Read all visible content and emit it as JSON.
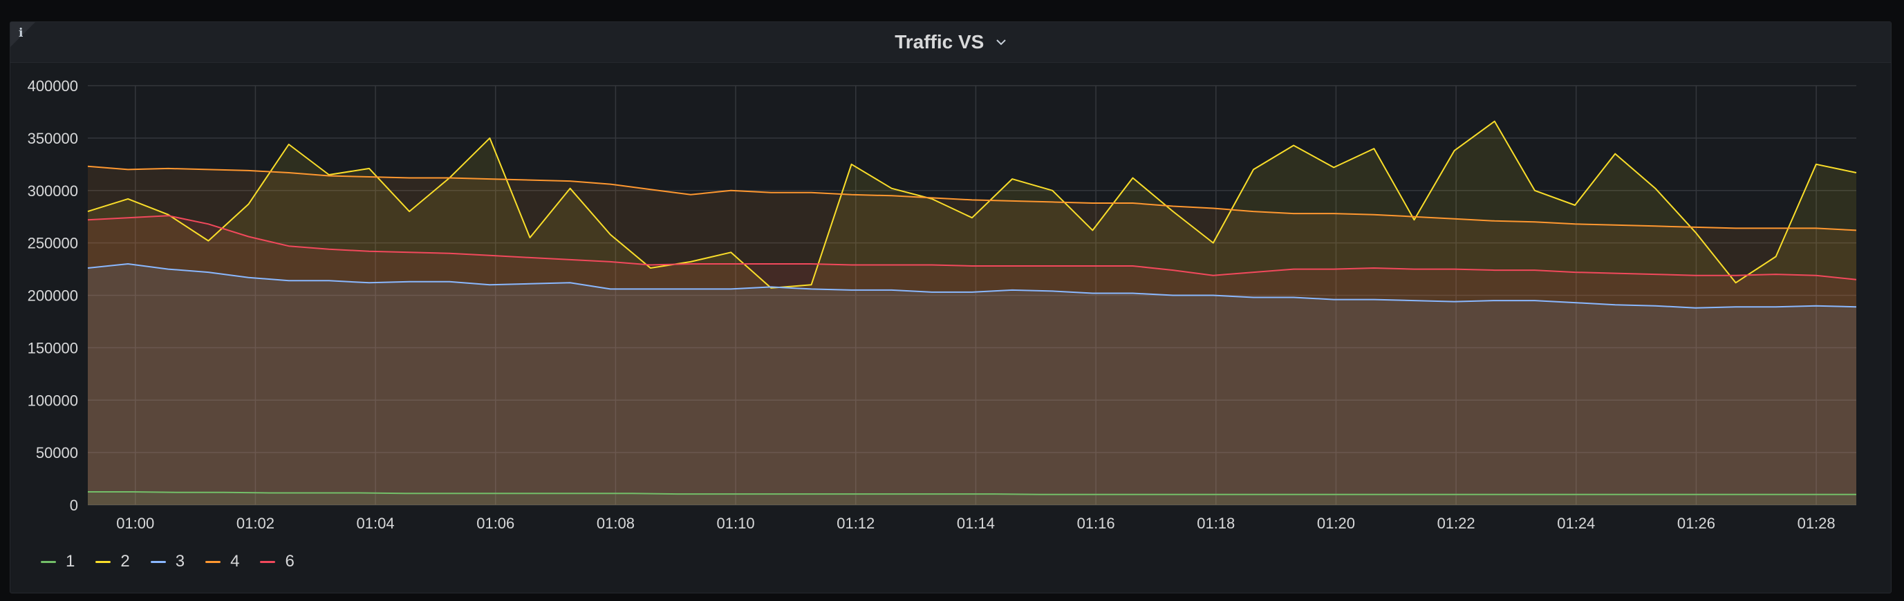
{
  "panel": {
    "title": "Traffic VS",
    "info_icon": "info-icon",
    "menu_icon": "chevron-down-icon"
  },
  "colors": {
    "background": "#0b0c0e",
    "panel": "#181b1f",
    "grid": "#3a3d42",
    "text": "#d8d9da"
  },
  "chart_data": {
    "type": "area",
    "title": "Traffic VS",
    "x_start": "00:58:25",
    "x_step_seconds": 10,
    "x_ticks": [
      "01:00",
      "01:02",
      "01:04",
      "01:06",
      "01:08",
      "01:10",
      "01:12",
      "01:14",
      "01:16",
      "01:18",
      "01:20",
      "01:22",
      "01:24",
      "01:26",
      "01:28"
    ],
    "x_tick_seconds": [
      95,
      335,
      575,
      815,
      1055,
      1295,
      1535,
      1775,
      2015,
      2255,
      2495,
      2735,
      2975,
      3215,
      3455
    ],
    "y_ticks": [
      0,
      50000,
      100000,
      150000,
      200000,
      250000,
      300000,
      350000,
      400000
    ],
    "y_tick_labels": [
      "0",
      "50000",
      "100000",
      "150000",
      "200000",
      "250000",
      "300000",
      "350000",
      "400000"
    ],
    "ylim": [
      0,
      400000
    ],
    "grid": true,
    "legend_position": "bottom-left",
    "series": [
      {
        "name": "1",
        "color": "#73bf69",
        "values": [
          12500,
          12500,
          12000,
          12000,
          11500,
          11500,
          11500,
          11000,
          11000,
          11000,
          11000,
          11000,
          11000,
          10500,
          10500,
          10500,
          10500,
          10500,
          10500,
          10500,
          10500,
          10000,
          10000,
          10000,
          10000,
          10000,
          10000,
          10000,
          10000,
          10000,
          10000,
          10000,
          10000,
          10000,
          10000,
          10000,
          10000,
          10000,
          10000,
          10000
        ]
      },
      {
        "name": "2",
        "color": "#fade2a",
        "values": [
          280000,
          292000,
          277000,
          252000,
          287000,
          344000,
          315000,
          321000,
          280000,
          312000,
          350000,
          255000,
          302000,
          258000,
          226000,
          232000,
          241000,
          207000,
          210000,
          325000,
          302000,
          292000,
          274000,
          311000,
          300000,
          262000,
          312000,
          280000,
          250000,
          320000,
          343000,
          322000,
          340000,
          272000,
          338000,
          366000,
          300000,
          286000,
          335000,
          302000,
          260000,
          212000,
          237000,
          325000,
          317000
        ]
      },
      {
        "name": "3",
        "color": "#8ab8ff",
        "values": [
          226000,
          230000,
          225000,
          222000,
          217000,
          214000,
          214000,
          212000,
          213000,
          213000,
          210000,
          211000,
          212000,
          206000,
          206000,
          206000,
          206000,
          208000,
          206000,
          205000,
          205000,
          203000,
          203000,
          205000,
          204000,
          202000,
          202000,
          200000,
          200000,
          198000,
          198000,
          196000,
          196000,
          195000,
          194000,
          195000,
          195000,
          193000,
          191000,
          190000,
          188000,
          189000,
          189000,
          190000,
          189000
        ]
      },
      {
        "name": "4",
        "color": "#ff9830",
        "values": [
          323000,
          320000,
          321000,
          320000,
          319000,
          317000,
          314000,
          313000,
          312000,
          312000,
          311000,
          310000,
          309000,
          306000,
          301000,
          296000,
          300000,
          298000,
          298000,
          296000,
          295000,
          293000,
          291000,
          290000,
          289000,
          288000,
          288000,
          285000,
          283000,
          280000,
          278000,
          278000,
          277000,
          275000,
          273000,
          271000,
          270000,
          268000,
          267000,
          266000,
          265000,
          264000,
          264000,
          264000,
          262000
        ]
      },
      {
        "name": "6",
        "color": "#f2495c",
        "values": [
          272000,
          274000,
          276000,
          268000,
          256000,
          247000,
          244000,
          242000,
          241000,
          240000,
          238000,
          236000,
          234000,
          232000,
          229000,
          230000,
          230000,
          230000,
          230000,
          229000,
          229000,
          229000,
          228000,
          228000,
          228000,
          228000,
          228000,
          224000,
          219000,
          222000,
          225000,
          225000,
          226000,
          225000,
          225000,
          224000,
          224000,
          222000,
          221000,
          220000,
          219000,
          219000,
          220000,
          219000,
          215000
        ]
      }
    ]
  },
  "legend": [
    {
      "label": "1",
      "color": "#73bf69"
    },
    {
      "label": "2",
      "color": "#fade2a"
    },
    {
      "label": "3",
      "color": "#8ab8ff"
    },
    {
      "label": "4",
      "color": "#ff9830"
    },
    {
      "label": "6",
      "color": "#f2495c"
    }
  ]
}
